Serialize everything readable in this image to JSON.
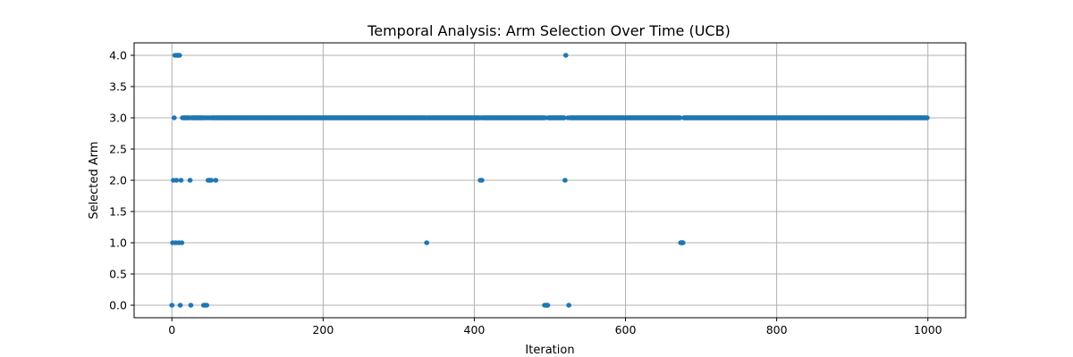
{
  "chart_data": {
    "type": "scatter",
    "title": "Temporal Analysis: Arm Selection Over Time (UCB)",
    "xlabel": "Iteration",
    "ylabel": "Selected Arm",
    "xlim": [
      -50,
      1050
    ],
    "ylim": [
      -0.2,
      4.2
    ],
    "xticks": [
      0,
      200,
      400,
      600,
      800,
      1000
    ],
    "xtick_labels": [
      "0",
      "200",
      "400",
      "600",
      "800",
      "1000"
    ],
    "yticks": [
      0.0,
      0.5,
      1.0,
      1.5,
      2.0,
      2.5,
      3.0,
      3.5,
      4.0
    ],
    "ytick_labels": [
      "0.0",
      "0.5",
      "1.0",
      "1.5",
      "2.0",
      "2.5",
      "3.0",
      "3.5",
      "4.0"
    ],
    "grid": true,
    "marker_color": "#1f77b4",
    "background_points": {
      "y": 3.0,
      "x_from": 4,
      "x_to": 999,
      "note_omitted": [
        493,
        495,
        496,
        497,
        520,
        521,
        522,
        523,
        525,
        526,
        673,
        674,
        675,
        676
      ]
    },
    "points": [
      {
        "x": 0,
        "y": 0
      },
      {
        "x": 1,
        "y": 1
      },
      {
        "x": 2,
        "y": 2
      },
      {
        "x": 3,
        "y": 3
      },
      {
        "x": 4,
        "y": 4
      },
      {
        "x": 5,
        "y": 1
      },
      {
        "x": 6,
        "y": 2
      },
      {
        "x": 7,
        "y": 4
      },
      {
        "x": 8,
        "y": 4
      },
      {
        "x": 9,
        "y": 1
      },
      {
        "x": 10,
        "y": 4
      },
      {
        "x": 11,
        "y": 0
      },
      {
        "x": 12,
        "y": 2
      },
      {
        "x": 13,
        "y": 1
      },
      {
        "x": 24,
        "y": 2
      },
      {
        "x": 25,
        "y": 0
      },
      {
        "x": 42,
        "y": 0
      },
      {
        "x": 44,
        "y": 0
      },
      {
        "x": 46,
        "y": 0
      },
      {
        "x": 48,
        "y": 2
      },
      {
        "x": 50,
        "y": 2
      },
      {
        "x": 52,
        "y": 2
      },
      {
        "x": 58,
        "y": 2
      },
      {
        "x": 337,
        "y": 1
      },
      {
        "x": 408,
        "y": 2
      },
      {
        "x": 410,
        "y": 2
      },
      {
        "x": 493,
        "y": 0
      },
      {
        "x": 495,
        "y": 0
      },
      {
        "x": 496,
        "y": 0
      },
      {
        "x": 497,
        "y": 0
      },
      {
        "x": 520,
        "y": 2
      },
      {
        "x": 521,
        "y": 4
      },
      {
        "x": 525,
        "y": 0
      },
      {
        "x": 673,
        "y": 1
      },
      {
        "x": 674,
        "y": 1
      },
      {
        "x": 675,
        "y": 1
      },
      {
        "x": 676,
        "y": 1
      }
    ]
  }
}
